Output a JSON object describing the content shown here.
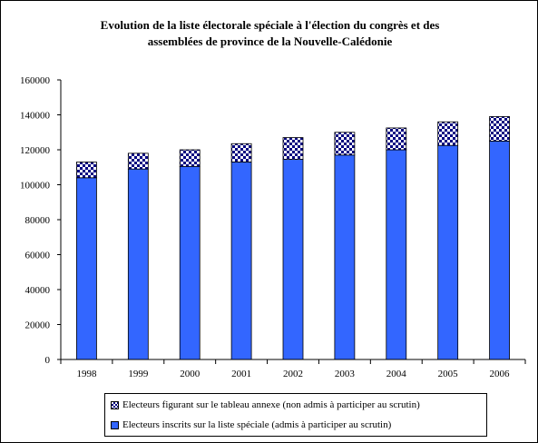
{
  "chart_data": {
    "type": "bar",
    "stacked": true,
    "title": "Evolution de la liste électorale spéciale à l'élection du congrès et des assemblées de province de la Nouvelle-Calédonie",
    "xlabel": "",
    "ylabel": "",
    "categories": [
      "1998",
      "1999",
      "2000",
      "2001",
      "2002",
      "2003",
      "2004",
      "2005",
      "2006"
    ],
    "series": [
      {
        "name": "Electeurs inscrits sur la liste spéciale (admis à participer au scrutin)",
        "values": [
          104000,
          109000,
          110500,
          113000,
          114500,
          117000,
          120000,
          122500,
          125000
        ],
        "color": "#3366FF",
        "fill": "solid"
      },
      {
        "name": "Electeurs figurant sur le tableau annexe (non admis à participer au scrutin)",
        "values": [
          9000,
          9000,
          9500,
          10500,
          12500,
          13000,
          12500,
          13500,
          14000
        ],
        "color": "#000080",
        "fill": "checkerboard"
      }
    ],
    "ylim": [
      0,
      160000
    ],
    "yticks": [
      0,
      20000,
      40000,
      60000,
      80000,
      100000,
      120000,
      140000,
      160000
    ],
    "grid": false,
    "legend": "bottom"
  }
}
